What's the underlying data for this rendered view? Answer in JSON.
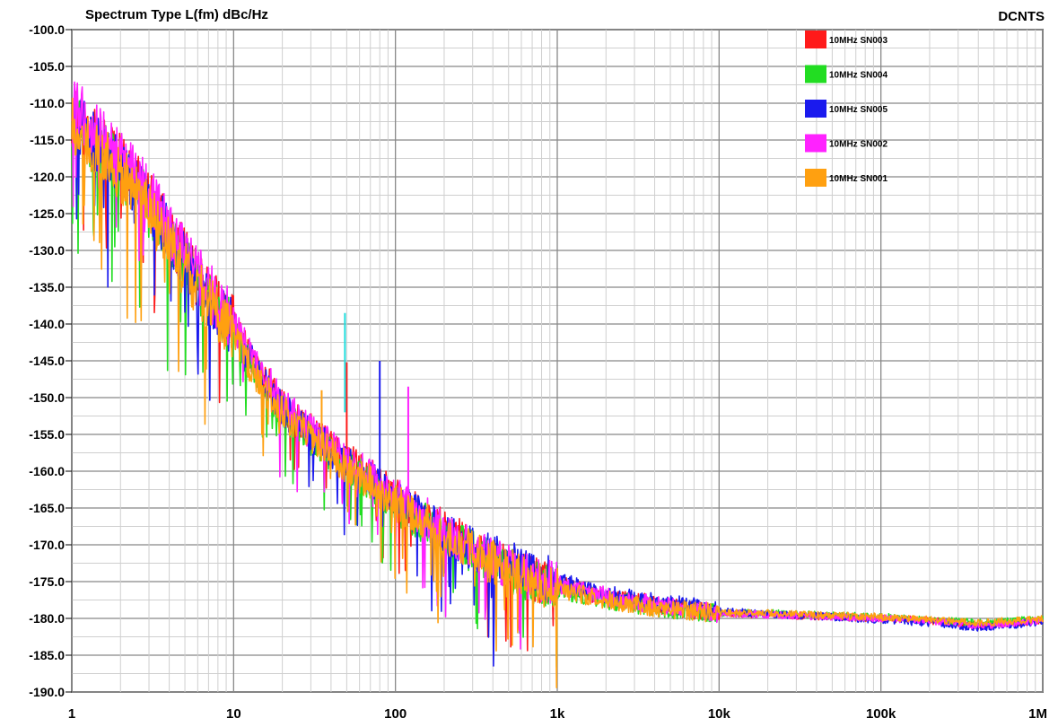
{
  "chart_data": {
    "type": "line",
    "title": "Spectrum Type   L(fm) dBc/Hz",
    "corner_label": "DCNTS",
    "x_scale": "log",
    "xlim": [
      1,
      1000000
    ],
    "ylim": [
      -190,
      -100
    ],
    "grid": true,
    "legend_position": "top-right",
    "x_tick_labels": [
      "1",
      "10",
      "100",
      "1k",
      "10k",
      "100k",
      "1M"
    ],
    "y_tick_labels": [
      "-100.0",
      "-105.0",
      "-110.0",
      "-115.0",
      "-120.0",
      "-125.0",
      "-130.0",
      "-135.0",
      "-140.0",
      "-145.0",
      "-150.0",
      "-155.0",
      "-160.0",
      "-165.0",
      "-170.0",
      "-175.0",
      "-180.0",
      "-185.0",
      "-190.0"
    ],
    "x": [
      1,
      2,
      3,
      5,
      7,
      10,
      15,
      20,
      30,
      50,
      70,
      100,
      150,
      200,
      300,
      500,
      700,
      1000,
      2000,
      5000,
      10000,
      20000,
      50000,
      100000,
      200000,
      400000,
      1000000
    ],
    "series": [
      {
        "name": "10MHz SN003",
        "color": "#ff1a1a",
        "values": [
          -111.5,
          -118,
          -123,
          -131,
          -136,
          -140,
          -147,
          -151,
          -154.5,
          -158.5,
          -160.5,
          -163.5,
          -166,
          -168,
          -170.5,
          -173,
          -174.5,
          -175.5,
          -177,
          -178.5,
          -179.3,
          -179.5,
          -179.8,
          -180,
          -180.3,
          -181,
          -180.3
        ],
        "spikes": [
          [
            50,
            -145.2
          ]
        ]
      },
      {
        "name": "10MHz SN004",
        "color": "#22dd22",
        "values": [
          -112.5,
          -119,
          -124,
          -132,
          -137,
          -141,
          -148,
          -152,
          -155.5,
          -159.5,
          -161.5,
          -164.5,
          -167,
          -169,
          -171,
          -173.5,
          -175,
          -176,
          -177.5,
          -178.8,
          -179.3,
          -179.3,
          -179.6,
          -179.8,
          -180.2,
          -180.6,
          -180.1
        ],
        "spikes": []
      },
      {
        "name": "10MHz SN005",
        "color": "#1a1aee",
        "values": [
          -112,
          -118.5,
          -123.5,
          -131.5,
          -136.5,
          -140.5,
          -147.5,
          -151.5,
          -155,
          -159,
          -161,
          -164,
          -166.5,
          -168.5,
          -170.5,
          -172.5,
          -174,
          -175,
          -176.8,
          -178,
          -179,
          -179.4,
          -179.8,
          -180.2,
          -180.6,
          -181.3,
          -180.5
        ],
        "spikes": [
          [
            80,
            -145
          ]
        ]
      },
      {
        "name": "10MHz SN002",
        "color": "#ff22ff",
        "values": [
          -110,
          -117,
          -122.5,
          -130.5,
          -135.5,
          -140,
          -146.5,
          -150.5,
          -154.5,
          -158.5,
          -160.5,
          -163.5,
          -166,
          -168,
          -170.5,
          -173,
          -174.5,
          -175.5,
          -177,
          -178.5,
          -179.3,
          -179.5,
          -179.8,
          -180,
          -180.3,
          -181,
          -180.3
        ],
        "spikes": [
          [
            120,
            -148.5
          ]
        ]
      },
      {
        "name": "10MHz SN001",
        "color": "#ffa010",
        "values": [
          -113,
          -119.5,
          -124.5,
          -132.5,
          -137.5,
          -141.5,
          -148.5,
          -152,
          -155.5,
          -159.5,
          -161.5,
          -164.5,
          -167,
          -169,
          -171,
          -173.5,
          -175,
          -176,
          -177.5,
          -178.8,
          -179.3,
          -179.3,
          -179.6,
          -179.8,
          -180.2,
          -180.6,
          -180.1
        ],
        "spikes": [
          [
            35,
            -149
          ]
        ]
      }
    ],
    "extra_spikes": [
      {
        "x": 50,
        "y": -138.5,
        "color": "#22dddd"
      }
    ]
  }
}
